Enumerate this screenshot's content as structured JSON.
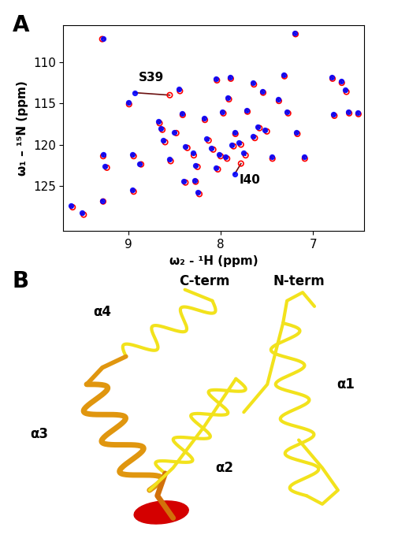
{
  "panel_labels": [
    "A",
    "B"
  ],
  "chart_data": {
    "type": "scatter",
    "x_label": "ω₂ - ¹H (ppm)",
    "y_label": "ω₁ – ¹⁵N (ppm)",
    "xlim": [
      9.7,
      6.45
    ],
    "ylim": [
      130.5,
      105.5
    ],
    "xticks": [
      9,
      8,
      7
    ],
    "yticks": [
      110,
      115,
      120,
      125
    ],
    "series": [
      {
        "color": "#ff0000",
        "marker": "o",
        "x": [
          9.6,
          9.48,
          9.27,
          9.23,
          9.27,
          9.28,
          8.99,
          8.94,
          8.94,
          8.86,
          8.66,
          8.63,
          8.6,
          8.54,
          8.48,
          8.44,
          8.41,
          8.36,
          8.29,
          8.27,
          8.23,
          8.25,
          8.17,
          8.13,
          8.08,
          8.04,
          8.0,
          7.97,
          7.93,
          7.91,
          7.89,
          7.86,
          7.84,
          7.78,
          7.73,
          7.71,
          7.64,
          7.58,
          7.54,
          7.5,
          7.44,
          7.37,
          7.31,
          7.27,
          7.19,
          7.17,
          7.09,
          6.79,
          6.77,
          6.69,
          6.64,
          6.61,
          6.51,
          8.38,
          8.03,
          7.63,
          8.55,
          7.78
        ],
        "y": [
          127.6,
          128.5,
          121.4,
          122.8,
          126.9,
          107.2,
          115.1,
          121.4,
          125.7,
          122.4,
          117.4,
          118.2,
          119.7,
          122.0,
          118.6,
          113.5,
          116.4,
          120.4,
          121.3,
          124.5,
          126.0,
          122.7,
          117.0,
          119.5,
          120.6,
          112.2,
          121.4,
          116.2,
          121.7,
          114.5,
          112.0,
          120.2,
          118.7,
          120.0,
          121.3,
          116.0,
          112.7,
          118.0,
          113.7,
          118.4,
          121.7,
          114.7,
          111.7,
          116.2,
          106.6,
          118.7,
          121.7,
          112.0,
          116.5,
          112.5,
          113.6,
          116.2,
          116.3,
          124.6,
          123.0,
          119.2,
          114.0,
          122.3
        ]
      },
      {
        "color": "#0000ff",
        "marker": "o",
        "x": [
          9.62,
          9.5,
          9.27,
          9.25,
          9.28,
          9.27,
          9.0,
          8.95,
          8.95,
          8.88,
          8.67,
          8.65,
          8.62,
          8.55,
          8.5,
          8.45,
          8.42,
          8.38,
          8.3,
          8.28,
          8.25,
          8.27,
          8.18,
          8.15,
          8.1,
          8.05,
          8.02,
          7.98,
          7.95,
          7.92,
          7.9,
          7.88,
          7.85,
          7.8,
          7.75,
          7.72,
          7.65,
          7.6,
          7.55,
          7.52,
          7.45,
          7.38,
          7.32,
          7.28,
          7.2,
          7.18,
          7.1,
          6.8,
          6.78,
          6.7,
          6.65,
          6.62,
          6.52,
          8.4,
          8.05,
          7.65,
          8.93,
          7.85
        ],
        "y": [
          127.4,
          128.3,
          121.2,
          122.6,
          126.8,
          107.1,
          114.9,
          121.2,
          125.5,
          122.3,
          117.2,
          118.0,
          119.5,
          121.8,
          118.5,
          113.3,
          116.2,
          120.2,
          121.0,
          124.3,
          125.8,
          122.5,
          116.8,
          119.3,
          120.4,
          112.0,
          121.2,
          116.0,
          121.5,
          114.3,
          111.8,
          120.0,
          118.5,
          119.8,
          121.0,
          115.8,
          112.5,
          117.8,
          113.5,
          118.2,
          121.5,
          114.5,
          111.5,
          116.0,
          106.5,
          118.5,
          121.5,
          111.8,
          116.3,
          112.3,
          113.4,
          116.0,
          116.1,
          124.4,
          122.8,
          119.0,
          113.7,
          123.6
        ]
      }
    ],
    "annotations": [
      {
        "text": "S39",
        "x": 8.75,
        "y": 112.6
      },
      {
        "text": "I40",
        "x": 7.68,
        "y": 125.0
      }
    ]
  },
  "diagram": {
    "labels": [
      "C-term",
      "N-term",
      "α1",
      "α2",
      "α3",
      "α4"
    ]
  }
}
